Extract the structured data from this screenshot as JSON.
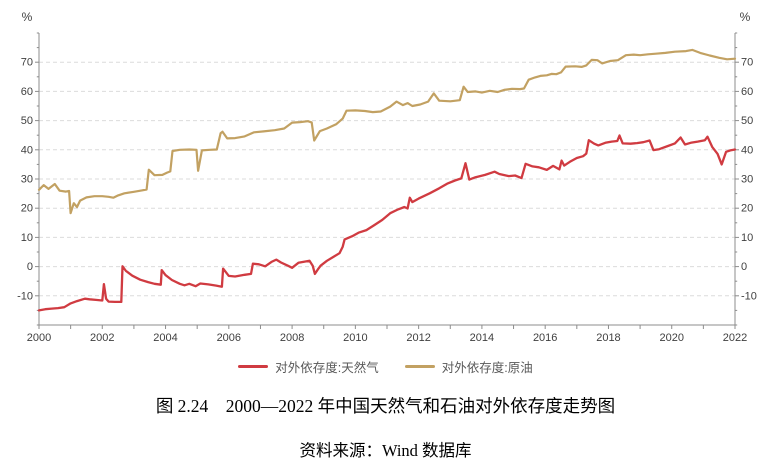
{
  "chart_data": {
    "type": "line",
    "unit_left": "%",
    "unit_right": "%",
    "x_axis": {
      "min": 2000,
      "max": 2022,
      "minor_tick_step_years": 1,
      "labels": [
        "2000",
        "2002",
        "2004",
        "2006",
        "2008",
        "2010",
        "2012",
        "2014",
        "2016",
        "2018",
        "2020",
        "2022"
      ],
      "label_values": [
        2000,
        2002,
        2004,
        2006,
        2008,
        2010,
        2012,
        2014,
        2016,
        2018,
        2020,
        2022
      ]
    },
    "y_axis": {
      "min": -20,
      "max": 80,
      "major_step": 10,
      "minor_step": 5,
      "labeled_values": [
        -10,
        0,
        10,
        20,
        30,
        40,
        50,
        60,
        70
      ],
      "grid": "dashed"
    },
    "colors": {
      "grid": "#dbdbdb",
      "axis": "#8c8c8c",
      "tick": "#8c8c8c"
    },
    "legend_position": "bottom",
    "series": [
      {
        "name": "对外依存度:天然气",
        "color": "#d03b41",
        "width": 2.3,
        "points": [
          [
            2000.0,
            -15.0
          ],
          [
            2000.2,
            -14.6
          ],
          [
            2000.4,
            -14.4
          ],
          [
            2000.6,
            -14.2
          ],
          [
            2000.8,
            -13.9
          ],
          [
            2001.0,
            -12.6
          ],
          [
            2001.2,
            -11.8
          ],
          [
            2001.45,
            -11.0
          ],
          [
            2001.6,
            -11.2
          ],
          [
            2001.8,
            -11.4
          ],
          [
            2002.0,
            -11.6
          ],
          [
            2002.05,
            -6.0
          ],
          [
            2002.12,
            -11.0
          ],
          [
            2002.2,
            -12.0
          ],
          [
            2002.4,
            -12.1
          ],
          [
            2002.6,
            -12.1
          ],
          [
            2002.64,
            0.1
          ],
          [
            2002.75,
            -1.5
          ],
          [
            2002.95,
            -3.1
          ],
          [
            2003.2,
            -4.5
          ],
          [
            2003.45,
            -5.3
          ],
          [
            2003.65,
            -5.9
          ],
          [
            2003.85,
            -6.2
          ],
          [
            2003.88,
            -1.2
          ],
          [
            2004.0,
            -2.9
          ],
          [
            2004.2,
            -4.6
          ],
          [
            2004.45,
            -5.9
          ],
          [
            2004.6,
            -6.4
          ],
          [
            2004.75,
            -5.9
          ],
          [
            2004.95,
            -6.7
          ],
          [
            2005.1,
            -5.8
          ],
          [
            2005.35,
            -6.1
          ],
          [
            2005.6,
            -6.5
          ],
          [
            2005.78,
            -6.9
          ],
          [
            2005.82,
            -0.7
          ],
          [
            2006.0,
            -3.2
          ],
          [
            2006.2,
            -3.4
          ],
          [
            2006.5,
            -2.8
          ],
          [
            2006.7,
            -2.5
          ],
          [
            2006.76,
            1.0
          ],
          [
            2006.95,
            0.8
          ],
          [
            2007.15,
            0.1
          ],
          [
            2007.35,
            1.6
          ],
          [
            2007.5,
            2.4
          ],
          [
            2007.65,
            1.4
          ],
          [
            2007.85,
            0.4
          ],
          [
            2008.0,
            -0.4
          ],
          [
            2008.2,
            1.3
          ],
          [
            2008.4,
            1.7
          ],
          [
            2008.55,
            2.0
          ],
          [
            2008.65,
            0.3
          ],
          [
            2008.72,
            -2.5
          ],
          [
            2008.8,
            -1.2
          ],
          [
            2008.9,
            0.3
          ],
          [
            2009.1,
            2.0
          ],
          [
            2009.3,
            3.3
          ],
          [
            2009.5,
            4.6
          ],
          [
            2009.6,
            6.8
          ],
          [
            2009.66,
            9.3
          ],
          [
            2009.9,
            10.4
          ],
          [
            2010.1,
            11.6
          ],
          [
            2010.35,
            12.5
          ],
          [
            2010.6,
            14.2
          ],
          [
            2010.85,
            16.0
          ],
          [
            2011.1,
            18.3
          ],
          [
            2011.35,
            19.6
          ],
          [
            2011.55,
            20.4
          ],
          [
            2011.65,
            19.9
          ],
          [
            2011.72,
            23.6
          ],
          [
            2011.8,
            22.1
          ],
          [
            2012.0,
            23.3
          ],
          [
            2012.35,
            25.1
          ],
          [
            2012.65,
            26.8
          ],
          [
            2012.9,
            28.4
          ],
          [
            2013.15,
            29.5
          ],
          [
            2013.35,
            30.2
          ],
          [
            2013.48,
            35.4
          ],
          [
            2013.6,
            29.8
          ],
          [
            2013.8,
            30.6
          ],
          [
            2014.1,
            31.4
          ],
          [
            2014.4,
            32.5
          ],
          [
            2014.55,
            31.7
          ],
          [
            2014.85,
            31.0
          ],
          [
            2015.05,
            31.2
          ],
          [
            2015.25,
            30.3
          ],
          [
            2015.38,
            35.2
          ],
          [
            2015.6,
            34.3
          ],
          [
            2015.8,
            34.0
          ],
          [
            2016.05,
            33.1
          ],
          [
            2016.25,
            34.5
          ],
          [
            2016.45,
            33.3
          ],
          [
            2016.52,
            36.3
          ],
          [
            2016.6,
            34.6
          ],
          [
            2016.78,
            35.9
          ],
          [
            2017.0,
            37.2
          ],
          [
            2017.2,
            37.8
          ],
          [
            2017.3,
            38.7
          ],
          [
            2017.38,
            43.3
          ],
          [
            2017.55,
            42.1
          ],
          [
            2017.68,
            41.5
          ],
          [
            2017.9,
            42.4
          ],
          [
            2018.1,
            42.8
          ],
          [
            2018.28,
            43.0
          ],
          [
            2018.35,
            44.9
          ],
          [
            2018.45,
            42.2
          ],
          [
            2018.7,
            42.1
          ],
          [
            2018.9,
            42.3
          ],
          [
            2019.1,
            42.6
          ],
          [
            2019.3,
            43.2
          ],
          [
            2019.42,
            39.9
          ],
          [
            2019.6,
            40.2
          ],
          [
            2019.88,
            41.3
          ],
          [
            2020.1,
            42.2
          ],
          [
            2020.28,
            44.2
          ],
          [
            2020.42,
            41.8
          ],
          [
            2020.6,
            42.4
          ],
          [
            2020.82,
            42.8
          ],
          [
            2021.05,
            43.3
          ],
          [
            2021.13,
            44.5
          ],
          [
            2021.28,
            41.0
          ],
          [
            2021.45,
            38.6
          ],
          [
            2021.58,
            35.0
          ],
          [
            2021.72,
            39.3
          ],
          [
            2021.85,
            39.8
          ],
          [
            2022.0,
            40.1
          ]
        ]
      },
      {
        "name": "对外依存度:原油",
        "color": "#c2a162",
        "width": 2.2,
        "points": [
          [
            2000.0,
            26.3
          ],
          [
            2000.15,
            27.9
          ],
          [
            2000.3,
            26.6
          ],
          [
            2000.5,
            28.3
          ],
          [
            2000.65,
            26.0
          ],
          [
            2000.85,
            25.7
          ],
          [
            2000.95,
            25.9
          ],
          [
            2001.0,
            18.3
          ],
          [
            2001.1,
            21.7
          ],
          [
            2001.2,
            20.4
          ],
          [
            2001.3,
            22.6
          ],
          [
            2001.5,
            23.7
          ],
          [
            2001.75,
            24.1
          ],
          [
            2002.0,
            24.1
          ],
          [
            2002.2,
            23.9
          ],
          [
            2002.35,
            23.6
          ],
          [
            2002.5,
            24.4
          ],
          [
            2002.7,
            25.1
          ],
          [
            2003.0,
            25.6
          ],
          [
            2003.25,
            26.1
          ],
          [
            2003.4,
            26.4
          ],
          [
            2003.47,
            33.2
          ],
          [
            2003.65,
            31.3
          ],
          [
            2003.9,
            31.4
          ],
          [
            2004.05,
            32.2
          ],
          [
            2004.15,
            32.6
          ],
          [
            2004.22,
            39.6
          ],
          [
            2004.45,
            40.0
          ],
          [
            2004.75,
            40.1
          ],
          [
            2004.98,
            40.0
          ],
          [
            2005.03,
            32.8
          ],
          [
            2005.15,
            39.8
          ],
          [
            2005.4,
            40.0
          ],
          [
            2005.62,
            40.1
          ],
          [
            2005.74,
            45.7
          ],
          [
            2005.8,
            46.2
          ],
          [
            2005.95,
            43.9
          ],
          [
            2006.2,
            44.0
          ],
          [
            2006.5,
            44.6
          ],
          [
            2006.8,
            46.0
          ],
          [
            2007.1,
            46.3
          ],
          [
            2007.45,
            46.7
          ],
          [
            2007.75,
            47.3
          ],
          [
            2008.0,
            49.3
          ],
          [
            2008.25,
            49.5
          ],
          [
            2008.5,
            49.8
          ],
          [
            2008.62,
            49.4
          ],
          [
            2008.7,
            43.2
          ],
          [
            2008.88,
            46.4
          ],
          [
            2009.1,
            47.3
          ],
          [
            2009.4,
            48.8
          ],
          [
            2009.6,
            50.7
          ],
          [
            2009.72,
            53.4
          ],
          [
            2010.0,
            53.5
          ],
          [
            2010.3,
            53.3
          ],
          [
            2010.55,
            52.9
          ],
          [
            2010.8,
            53.1
          ],
          [
            2011.1,
            54.8
          ],
          [
            2011.3,
            56.5
          ],
          [
            2011.5,
            55.3
          ],
          [
            2011.65,
            56.0
          ],
          [
            2011.8,
            55.0
          ],
          [
            2012.05,
            55.5
          ],
          [
            2012.3,
            56.5
          ],
          [
            2012.48,
            59.3
          ],
          [
            2012.65,
            56.8
          ],
          [
            2013.0,
            56.6
          ],
          [
            2013.3,
            57.0
          ],
          [
            2013.42,
            61.6
          ],
          [
            2013.55,
            59.8
          ],
          [
            2013.8,
            60.0
          ],
          [
            2014.0,
            59.6
          ],
          [
            2014.25,
            60.2
          ],
          [
            2014.5,
            59.8
          ],
          [
            2014.7,
            60.5
          ],
          [
            2014.95,
            60.9
          ],
          [
            2015.2,
            60.8
          ],
          [
            2015.33,
            61.0
          ],
          [
            2015.48,
            64.0
          ],
          [
            2015.68,
            64.8
          ],
          [
            2015.85,
            65.3
          ],
          [
            2016.05,
            65.5
          ],
          [
            2016.2,
            66.0
          ],
          [
            2016.35,
            65.9
          ],
          [
            2016.5,
            66.5
          ],
          [
            2016.65,
            68.5
          ],
          [
            2016.95,
            68.6
          ],
          [
            2017.15,
            68.4
          ],
          [
            2017.3,
            68.9
          ],
          [
            2017.47,
            70.8
          ],
          [
            2017.65,
            70.7
          ],
          [
            2017.8,
            69.6
          ],
          [
            2018.05,
            70.4
          ],
          [
            2018.3,
            70.7
          ],
          [
            2018.55,
            72.4
          ],
          [
            2018.8,
            72.6
          ],
          [
            2019.0,
            72.4
          ],
          [
            2019.25,
            72.7
          ],
          [
            2019.5,
            72.9
          ],
          [
            2019.8,
            73.2
          ],
          [
            2020.1,
            73.6
          ],
          [
            2020.45,
            73.8
          ],
          [
            2020.65,
            74.2
          ],
          [
            2020.9,
            73.2
          ],
          [
            2021.2,
            72.3
          ],
          [
            2021.5,
            71.5
          ],
          [
            2021.75,
            71.0
          ],
          [
            2022.0,
            71.2
          ]
        ]
      }
    ]
  },
  "captions": {
    "figure": "图 2.24　2000—2022 年中国天然气和石油对外依存度走势图",
    "source": "资料来源：Wind 数据库"
  }
}
